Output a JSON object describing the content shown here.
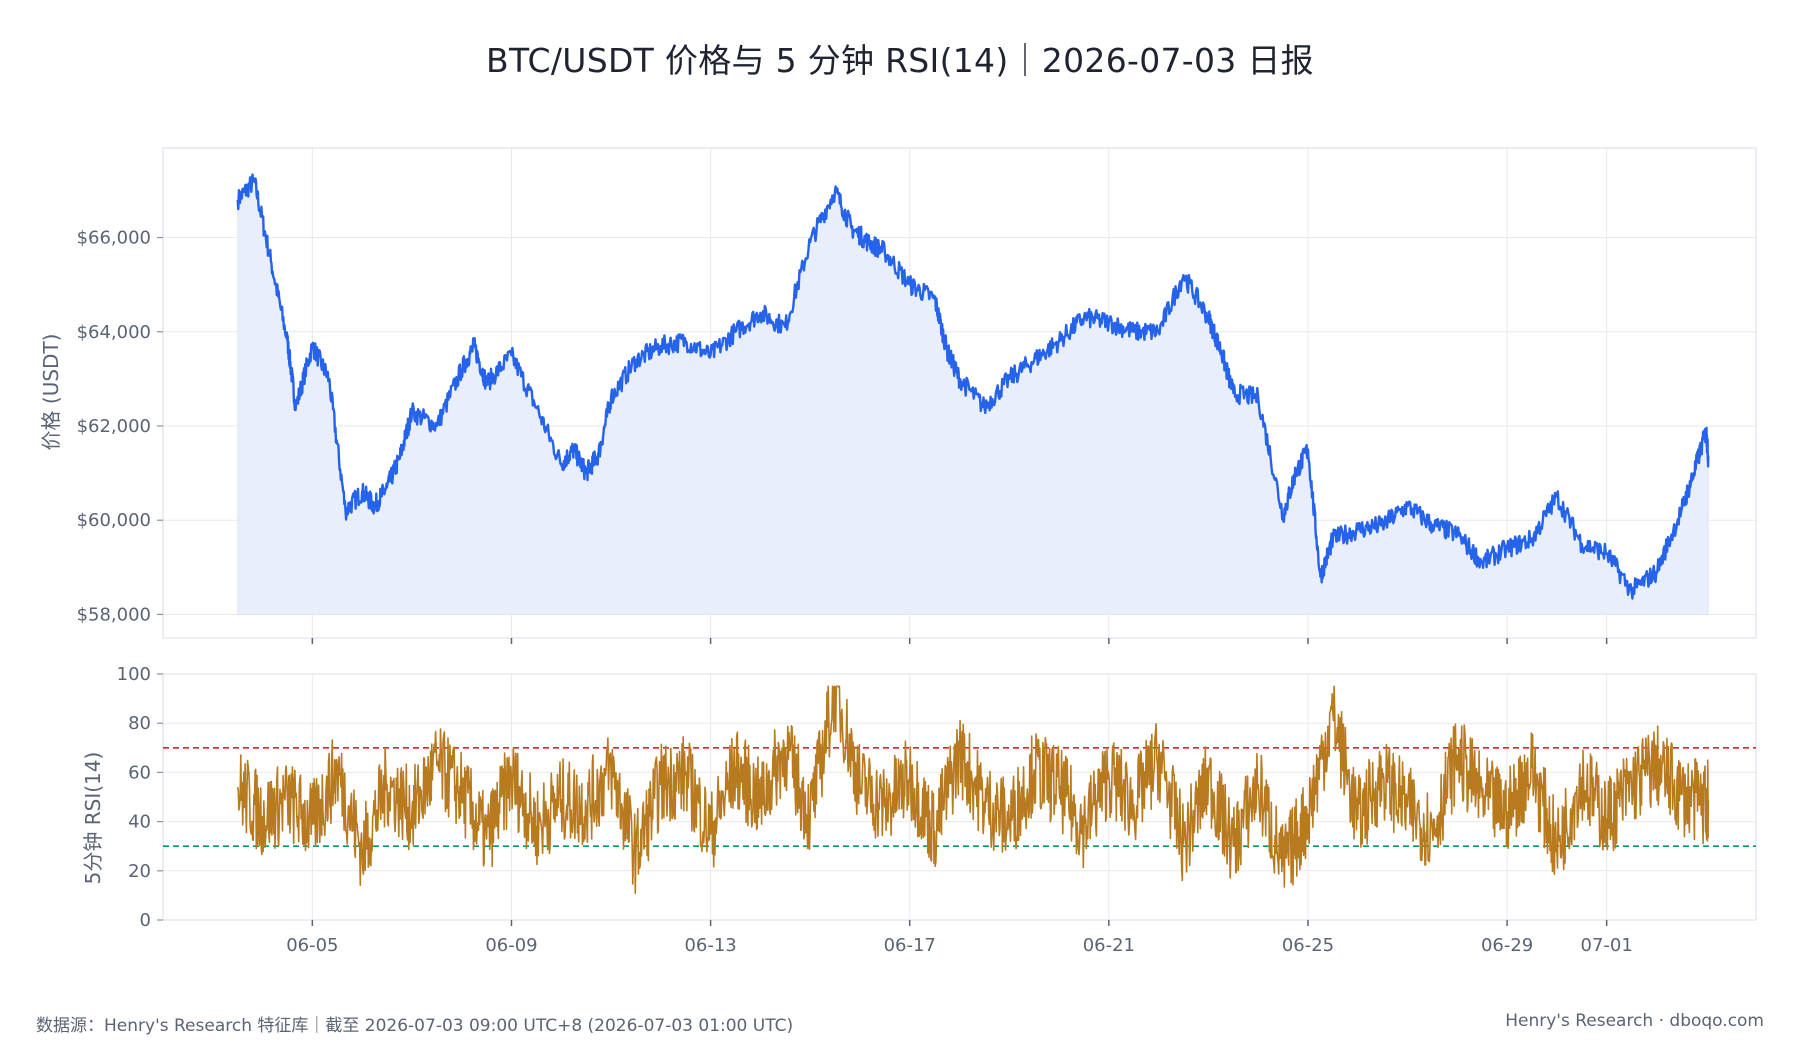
{
  "title": "BTC/USDT 价格与 5 分钟 RSI(14)｜2026-07-03 日报",
  "footer": {
    "source": "数据源：Henry's Research 特征库｜截至 2026-07-03 09:00 UTC+8 (2026-07-03 01:00 UTC)",
    "brand": "Henry's Research · dboqo.com"
  },
  "colors": {
    "price_line": "#2563eb",
    "price_fill": "#e8eefb",
    "rsi_line": "#b87a1f",
    "overbought_line": "#dc2626",
    "oversold_line": "#059669",
    "grid": "#e6e9ef"
  },
  "chart_data": [
    {
      "type": "area",
      "panel": "price",
      "ylabel": "价格 (USDT)",
      "ylim": [
        57500,
        67900
      ],
      "yticks": [
        58000,
        60000,
        62000,
        64000,
        66000
      ],
      "ytick_labels": [
        "$58,000",
        "$60,000",
        "$62,000",
        "$64,000",
        "$66,000"
      ],
      "xlim": [
        "2026-06-02",
        "2026-07-04"
      ],
      "grid": true,
      "series": [
        {
          "x": [
            "2026-06-03 12:00",
            "2026-06-03 20:00",
            "2026-06-04 04:00",
            "2026-06-04 12:00",
            "2026-06-04 16:00",
            "2026-06-05 00:00",
            "2026-06-05 08:00",
            "2026-06-05 16:00",
            "2026-06-06 00:00",
            "2026-06-06 06:00",
            "2026-06-06 12:00",
            "2026-06-06 18:00",
            "2026-06-07 00:00",
            "2026-06-07 12:00",
            "2026-06-08 00:00",
            "2026-06-08 06:00",
            "2026-06-08 12:00",
            "2026-06-09 00:00",
            "2026-06-09 12:00",
            "2026-06-10 00:00",
            "2026-06-10 06:00",
            "2026-06-10 12:00",
            "2026-06-10 18:00",
            "2026-06-11 00:00",
            "2026-06-11 12:00",
            "2026-06-12 00:00",
            "2026-06-12 12:00",
            "2026-06-13 00:00",
            "2026-06-13 12:00",
            "2026-06-14 00:00",
            "2026-06-14 12:00",
            "2026-06-15 00:00",
            "2026-06-15 12:00",
            "2026-06-15 20:00",
            "2026-06-16 04:00",
            "2026-06-16 12:00",
            "2026-06-17 00:00",
            "2026-06-17 12:00",
            "2026-06-17 18:00",
            "2026-06-18 00:00",
            "2026-06-18 12:00",
            "2026-06-19 00:00",
            "2026-06-19 12:00",
            "2026-06-20 00:00",
            "2026-06-20 12:00",
            "2026-06-21 00:00",
            "2026-06-21 12:00",
            "2026-06-22 00:00",
            "2026-06-22 12:00",
            "2026-06-23 00:00",
            "2026-06-23 06:00",
            "2026-06-23 12:00",
            "2026-06-24 00:00",
            "2026-06-24 12:00",
            "2026-06-24 18:00",
            "2026-06-25 00:00",
            "2026-06-25 06:00",
            "2026-06-25 12:00",
            "2026-06-26 00:00",
            "2026-06-26 12:00",
            "2026-06-27 00:00",
            "2026-06-27 12:00",
            "2026-06-28 00:00",
            "2026-06-28 12:00",
            "2026-06-29 00:00",
            "2026-06-29 12:00",
            "2026-06-30 00:00",
            "2026-06-30 12:00",
            "2026-07-01 00:00",
            "2026-07-01 12:00",
            "2026-07-02 00:00",
            "2026-07-02 12:00",
            "2026-07-02 18:00",
            "2026-07-03 00:00",
            "2026-07-03 01:00"
          ],
          "y": [
            66800,
            67200,
            65500,
            63800,
            62400,
            63700,
            63000,
            60200,
            60600,
            60300,
            60700,
            61300,
            62300,
            62000,
            63200,
            63700,
            62900,
            63500,
            62400,
            61200,
            61500,
            61000,
            61400,
            62600,
            63400,
            63700,
            63800,
            63500,
            64000,
            64400,
            64100,
            65900,
            67000,
            66200,
            65900,
            65700,
            65000,
            64700,
            63600,
            63000,
            62400,
            63000,
            63400,
            63800,
            64300,
            64200,
            64000,
            64000,
            65200,
            64300,
            63600,
            62700,
            62600,
            60100,
            61000,
            61500,
            58800,
            59600,
            59800,
            59900,
            60300,
            59900,
            59700,
            59100,
            59400,
            59600,
            60500,
            59500,
            59300,
            58500,
            58900,
            60200,
            61000,
            61900,
            61300
          ]
        }
      ]
    },
    {
      "type": "line",
      "panel": "rsi",
      "ylabel": "5分钟 RSI(14)",
      "ylim": [
        0,
        100
      ],
      "yticks": [
        0,
        20,
        40,
        60,
        80,
        100
      ],
      "xticks": [
        "06-05",
        "06-09",
        "06-13",
        "06-17",
        "06-21",
        "06-25",
        "06-29",
        "07-01"
      ],
      "reference_lines": [
        70,
        30
      ],
      "grid": true,
      "series": [
        {
          "x": [
            "2026-06-03 12:00",
            "2026-06-04 00:00",
            "2026-06-04 12:00",
            "2026-06-05 00:00",
            "2026-06-05 12:00",
            "2026-06-06 00:00",
            "2026-06-06 12:00",
            "2026-06-07 00:00",
            "2026-06-07 12:00",
            "2026-06-08 00:00",
            "2026-06-08 12:00",
            "2026-06-09 00:00",
            "2026-06-09 12:00",
            "2026-06-10 00:00",
            "2026-06-10 12:00",
            "2026-06-11 00:00",
            "2026-06-11 12:00",
            "2026-06-12 00:00",
            "2026-06-12 12:00",
            "2026-06-13 00:00",
            "2026-06-13 12:00",
            "2026-06-14 00:00",
            "2026-06-14 12:00",
            "2026-06-15 00:00",
            "2026-06-15 12:00",
            "2026-06-16 00:00",
            "2026-06-16 12:00",
            "2026-06-17 00:00",
            "2026-06-17 12:00",
            "2026-06-18 00:00",
            "2026-06-18 12:00",
            "2026-06-19 00:00",
            "2026-06-19 12:00",
            "2026-06-20 00:00",
            "2026-06-20 12:00",
            "2026-06-21 00:00",
            "2026-06-21 12:00",
            "2026-06-22 00:00",
            "2026-06-22 12:00",
            "2026-06-23 00:00",
            "2026-06-23 12:00",
            "2026-06-24 00:00",
            "2026-06-24 12:00",
            "2026-06-25 00:00",
            "2026-06-25 12:00",
            "2026-06-26 00:00",
            "2026-06-26 12:00",
            "2026-06-27 00:00",
            "2026-06-27 12:00",
            "2026-06-28 00:00",
            "2026-06-28 12:00",
            "2026-06-29 00:00",
            "2026-06-29 12:00",
            "2026-06-30 00:00",
            "2026-06-30 12:00",
            "2026-07-01 00:00",
            "2026-07-01 12:00",
            "2026-07-02 00:00",
            "2026-07-02 12:00",
            "2026-07-03 00:00",
            "2026-07-03 01:00"
          ],
          "y": [
            54,
            42,
            49,
            39,
            61,
            28,
            55,
            44,
            63,
            52,
            33,
            58,
            38,
            49,
            46,
            61,
            27,
            55,
            59,
            35,
            62,
            48,
            70,
            42,
            94,
            55,
            46,
            58,
            36,
            68,
            48,
            40,
            61,
            54,
            38,
            59,
            47,
            66,
            31,
            57,
            30,
            55,
            22,
            43,
            84,
            41,
            58,
            46,
            36,
            67,
            50,
            44,
            62,
            29,
            58,
            41,
            55,
            63,
            51,
            47,
            49
          ]
        }
      ]
    }
  ]
}
